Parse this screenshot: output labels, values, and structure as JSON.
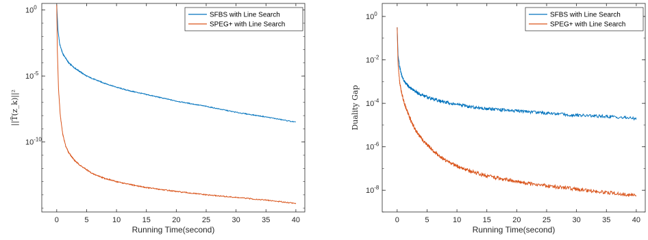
{
  "chart_data": [
    {
      "type": "line",
      "xlabel": "Running Time(second)",
      "ylabel": "||T̃(z_k)||²",
      "yscale": "log",
      "xlim": [
        -2.5,
        41.5
      ],
      "ylim_log10": [
        -15.3,
        0.5
      ],
      "x_ticks": [
        0,
        5,
        10,
        15,
        20,
        25,
        30,
        35,
        40
      ],
      "y_ticks": [
        {
          "value_log10": 0,
          "base": "10",
          "exp": "0"
        },
        {
          "value_log10": -5,
          "base": "10",
          "exp": "-5"
        },
        {
          "value_log10": -10,
          "base": "10",
          "exp": "-10"
        }
      ],
      "legend_position": "top-right",
      "grid": false,
      "series": [
        {
          "name": "SFBS with Line Search",
          "color": "#0072BD",
          "x": [
            0,
            0.2,
            0.5,
            1,
            2,
            3,
            4,
            5,
            6,
            8,
            10,
            12,
            15,
            20,
            25,
            30,
            35,
            40
          ],
          "y_log10": [
            0.4,
            -1.5,
            -2.6,
            -3.3,
            -4.0,
            -4.4,
            -4.7,
            -5.0,
            -5.2,
            -5.55,
            -5.85,
            -6.1,
            -6.4,
            -6.9,
            -7.3,
            -7.75,
            -8.1,
            -8.5
          ]
        },
        {
          "name": "SPEG+ with Line Search",
          "color": "#D95319",
          "x": [
            0,
            0.1,
            0.3,
            0.6,
            1,
            1.5,
            2,
            3,
            4,
            5,
            6,
            8,
            10,
            12,
            15,
            20,
            25,
            30,
            35,
            40
          ],
          "y_log10": [
            0.4,
            -3.0,
            -6.0,
            -8.0,
            -9.4,
            -10.3,
            -10.8,
            -11.4,
            -11.8,
            -12.1,
            -12.4,
            -12.75,
            -13.0,
            -13.2,
            -13.45,
            -13.75,
            -14.0,
            -14.2,
            -14.4,
            -14.65
          ]
        }
      ]
    },
    {
      "type": "line",
      "xlabel": "Running Time(second)",
      "ylabel": "Duality Gap",
      "yscale": "log",
      "xlim": [
        -2.5,
        41.5
      ],
      "ylim_log10": [
        -9.0,
        0.6
      ],
      "x_ticks": [
        0,
        5,
        10,
        15,
        20,
        25,
        30,
        35,
        40
      ],
      "y_ticks": [
        {
          "value_log10": 0,
          "base": "10",
          "exp": "0"
        },
        {
          "value_log10": -2,
          "base": "10",
          "exp": "-2"
        },
        {
          "value_log10": -4,
          "base": "10",
          "exp": "-4"
        },
        {
          "value_log10": -6,
          "base": "10",
          "exp": "-6"
        },
        {
          "value_log10": -8,
          "base": "10",
          "exp": "-8"
        }
      ],
      "legend_position": "top-right",
      "grid": false,
      "series": [
        {
          "name": "SFBS with Line Search",
          "color": "#0072BD",
          "x": [
            0,
            0.15,
            0.4,
            0.8,
            1.2,
            2,
            3,
            4,
            5,
            6,
            8,
            10,
            12,
            15,
            20,
            25,
            30,
            35,
            40
          ],
          "y_log10": [
            -0.5,
            -1.8,
            -2.3,
            -2.75,
            -3.0,
            -3.25,
            -3.45,
            -3.6,
            -3.7,
            -3.8,
            -3.95,
            -4.05,
            -4.15,
            -4.25,
            -4.35,
            -4.45,
            -4.55,
            -4.6,
            -4.7
          ]
        },
        {
          "name": "SPEG+ with Line Search",
          "color": "#D95319",
          "x": [
            0,
            0.15,
            0.4,
            0.8,
            1.2,
            2,
            3,
            4,
            5,
            6,
            8,
            10,
            12,
            15,
            20,
            25,
            30,
            35,
            40
          ],
          "y_log10": [
            -0.5,
            -2.2,
            -3.0,
            -3.6,
            -4.0,
            -4.6,
            -5.2,
            -5.6,
            -5.9,
            -6.2,
            -6.6,
            -6.9,
            -7.1,
            -7.35,
            -7.6,
            -7.8,
            -7.95,
            -8.1,
            -8.25
          ]
        }
      ]
    }
  ]
}
